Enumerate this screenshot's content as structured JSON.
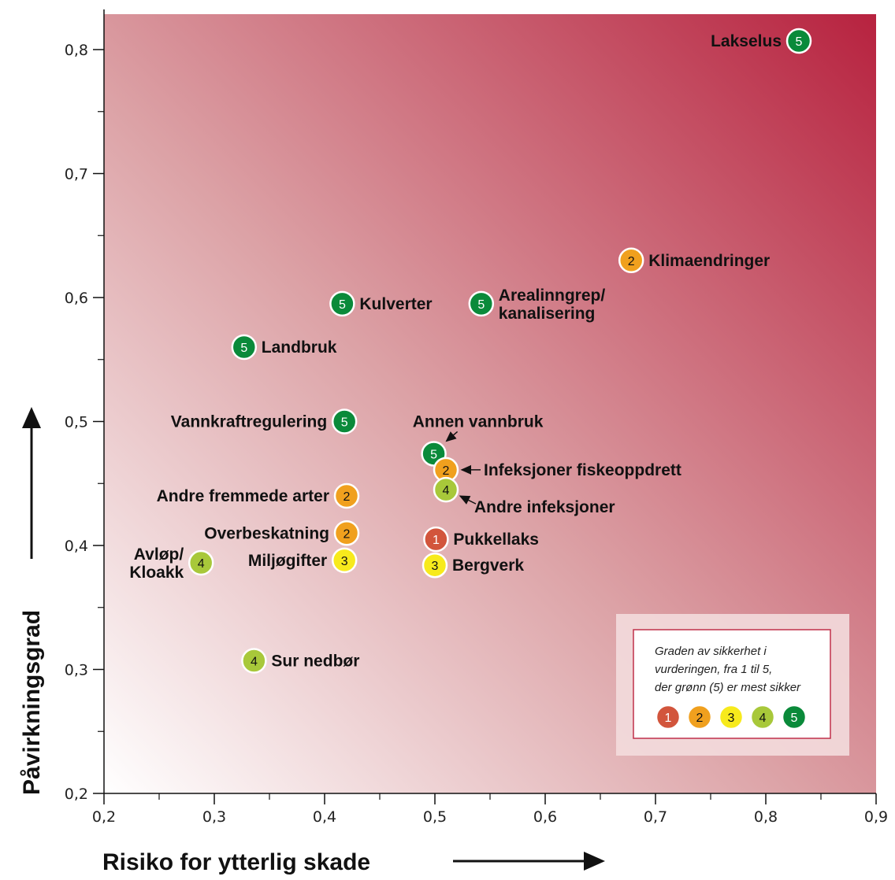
{
  "chart_data": {
    "type": "scatter",
    "title": "",
    "xlabel": "Risiko for ytterlig skade",
    "ylabel": "Påvirkningsgrad",
    "xlim": [
      0.2,
      0.9
    ],
    "ylim": [
      0.2,
      0.83
    ],
    "x_ticks": [
      "0,2",
      "0,3",
      "0,4",
      "0,5",
      "0,6",
      "0,7",
      "0,8",
      "0,9"
    ],
    "y_ticks": [
      "0,2",
      "0,3",
      "0,4",
      "0,5",
      "0,6",
      "0,7",
      "0,8"
    ],
    "certainty_colors": {
      "1": "#d2553c",
      "2": "#f0a01e",
      "3": "#f7ea1c",
      "4": "#a8c83a",
      "5": "#0a8a3a"
    },
    "points": [
      {
        "label": "Lakselus",
        "x": 0.83,
        "y": 0.807,
        "certainty": "5",
        "label_pos": "left"
      },
      {
        "label": "Klimaendringer",
        "x": 0.678,
        "y": 0.63,
        "certainty": "2",
        "label_pos": "right"
      },
      {
        "label": "Arealinngrep/\nkanalisering",
        "x": 0.542,
        "y": 0.595,
        "certainty": "5",
        "label_pos": "right"
      },
      {
        "label": "Kulverter",
        "x": 0.416,
        "y": 0.595,
        "certainty": "5",
        "label_pos": "right"
      },
      {
        "label": "Landbruk",
        "x": 0.327,
        "y": 0.56,
        "certainty": "5",
        "label_pos": "right"
      },
      {
        "label": "Vannkraftregulering",
        "x": 0.418,
        "y": 0.5,
        "certainty": "5",
        "label_pos": "left"
      },
      {
        "label": "Annen vannbruk",
        "x": 0.499,
        "y": 0.474,
        "certainty": "5",
        "label_pos": "arrow-top"
      },
      {
        "label": "Infeksjoner fiskeoppdrett",
        "x": 0.51,
        "y": 0.461,
        "certainty": "2",
        "label_pos": "arrow-right"
      },
      {
        "label": "Andre infeksjoner",
        "x": 0.51,
        "y": 0.445,
        "certainty": "4",
        "label_pos": "arrow-lower-right"
      },
      {
        "label": "Andre fremmede arter",
        "x": 0.42,
        "y": 0.44,
        "certainty": "2",
        "label_pos": "left"
      },
      {
        "label": "Overbeskatning",
        "x": 0.42,
        "y": 0.41,
        "certainty": "2",
        "label_pos": "left"
      },
      {
        "label": "Pukkellaks",
        "x": 0.501,
        "y": 0.405,
        "certainty": "1",
        "label_pos": "right"
      },
      {
        "label": "Miljøgifter",
        "x": 0.418,
        "y": 0.388,
        "certainty": "3",
        "label_pos": "left"
      },
      {
        "label": "Bergverk",
        "x": 0.5,
        "y": 0.384,
        "certainty": "3",
        "label_pos": "right"
      },
      {
        "label": "Avløp/\nKloakk",
        "x": 0.288,
        "y": 0.386,
        "certainty": "4",
        "label_pos": "left"
      },
      {
        "label": "Sur nedbør",
        "x": 0.336,
        "y": 0.307,
        "certainty": "4",
        "label_pos": "right"
      }
    ],
    "legend": {
      "placement": "bottom-right",
      "text_lines": [
        "Graden av sikkerhet i",
        "vurderingen, fra 1 til 5,",
        "der grønn (5) er mest sikker"
      ],
      "items": [
        "1",
        "2",
        "3",
        "4",
        "5"
      ]
    },
    "grid": false
  }
}
